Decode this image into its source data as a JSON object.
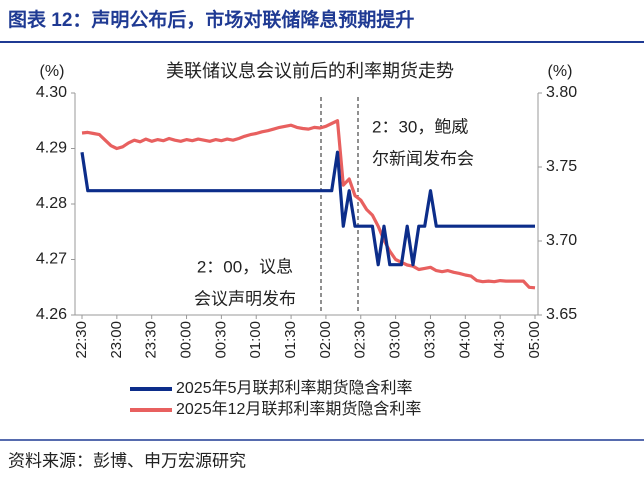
{
  "header": {
    "title": "图表 12：声明公布后，市场对联储降息预期提升"
  },
  "source": "资料来源：彭博、申万宏源研究",
  "chart_data": {
    "type": "line",
    "title": "美联储议息会议前后的利率期货走势",
    "ylabel": "(%)",
    "y2label": "(%)",
    "categories": [
      "22:30",
      null,
      null,
      null,
      null,
      null,
      "23:00",
      null,
      null,
      null,
      null,
      null,
      "23:30",
      null,
      null,
      null,
      null,
      null,
      "00:00",
      null,
      null,
      null,
      null,
      null,
      "00:30",
      null,
      null,
      null,
      null,
      null,
      "01:00",
      null,
      null,
      null,
      null,
      null,
      "01:30",
      null,
      null,
      null,
      null,
      null,
      "02:00",
      null,
      null,
      null,
      null,
      null,
      "02:30",
      null,
      null,
      null,
      null,
      null,
      "03:00",
      null,
      null,
      null,
      null,
      null,
      "03:30",
      null,
      null,
      null,
      null,
      null,
      "04:00",
      null,
      null,
      null,
      null,
      null,
      "04:30",
      null,
      null,
      null,
      null,
      null,
      "05:00"
    ],
    "ylim": [
      4.26,
      4.3
    ],
    "yticks": [
      {
        "value": 4.3,
        "label": "4.30"
      },
      4.29,
      4.28,
      4.27,
      4.26
    ],
    "y2lim": [
      3.65,
      3.8
    ],
    "y2ticks": [
      {
        "value": 3.8,
        "label": "3.80"
      },
      3.75,
      {
        "value": 3.7,
        "label": "3.70"
      },
      3.65
    ],
    "series": [
      {
        "name": "2025年5月联邦利率期货隐含利率",
        "color": "#0c2d8a",
        "axis": "y2",
        "values": [
          3.76,
          3.734,
          3.734,
          3.734,
          3.734,
          3.734,
          3.734,
          3.734,
          3.734,
          3.734,
          3.734,
          3.734,
          3.734,
          3.734,
          3.734,
          3.734,
          3.734,
          3.734,
          3.734,
          3.734,
          3.734,
          3.734,
          3.734,
          3.734,
          3.734,
          3.734,
          3.734,
          3.734,
          3.734,
          3.734,
          3.734,
          3.734,
          3.734,
          3.734,
          3.734,
          3.734,
          3.734,
          3.734,
          3.734,
          3.734,
          3.734,
          3.734,
          3.734,
          3.734,
          3.76,
          3.71,
          3.734,
          3.71,
          3.71,
          3.71,
          3.71,
          3.684,
          3.71,
          3.684,
          3.684,
          3.684,
          3.71,
          3.684,
          3.71,
          3.71,
          3.734,
          3.71,
          3.71,
          3.71,
          3.71,
          3.71,
          3.71,
          3.71,
          3.71,
          3.71,
          3.71,
          3.71,
          3.71,
          3.71,
          3.71,
          3.71,
          3.71,
          3.71,
          3.71
        ]
      },
      {
        "name": "2025年12月联邦利率期货隐含利率",
        "color": "#e8605f",
        "values": [
          4.2928,
          4.2929,
          4.2927,
          4.2925,
          4.2915,
          4.2905,
          4.29,
          4.2903,
          4.291,
          4.2915,
          4.2912,
          4.2917,
          4.2913,
          4.2916,
          4.2914,
          4.2918,
          4.2915,
          4.2913,
          4.2916,
          4.2914,
          4.2917,
          4.2915,
          4.2913,
          4.2916,
          4.2914,
          4.2917,
          4.2915,
          4.2918,
          4.2922,
          4.2925,
          4.2927,
          4.293,
          4.2932,
          4.2935,
          4.2938,
          4.294,
          4.2942,
          4.2938,
          4.2936,
          4.2935,
          4.2938,
          4.2937,
          4.294,
          4.2945,
          4.295,
          4.2834,
          4.2845,
          4.2815,
          4.2807,
          4.279,
          4.278,
          4.276,
          4.2735,
          4.2715,
          4.27,
          4.2695,
          4.269,
          4.2688,
          4.2682,
          4.2684,
          4.2686,
          4.268,
          4.2678,
          4.268,
          4.2677,
          4.2675,
          4.2672,
          4.267,
          4.2662,
          4.266,
          4.2661,
          4.266,
          4.2662,
          4.2661,
          4.2661,
          4.2661,
          4.2661,
          4.265,
          4.2649
        ]
      }
    ],
    "annotations": [
      {
        "lines": [
          "2：30，鲍威",
          "尔新闻发布会"
        ]
      },
      {
        "lines": [
          "2：00，议息",
          "会议声明发布"
        ]
      }
    ]
  }
}
